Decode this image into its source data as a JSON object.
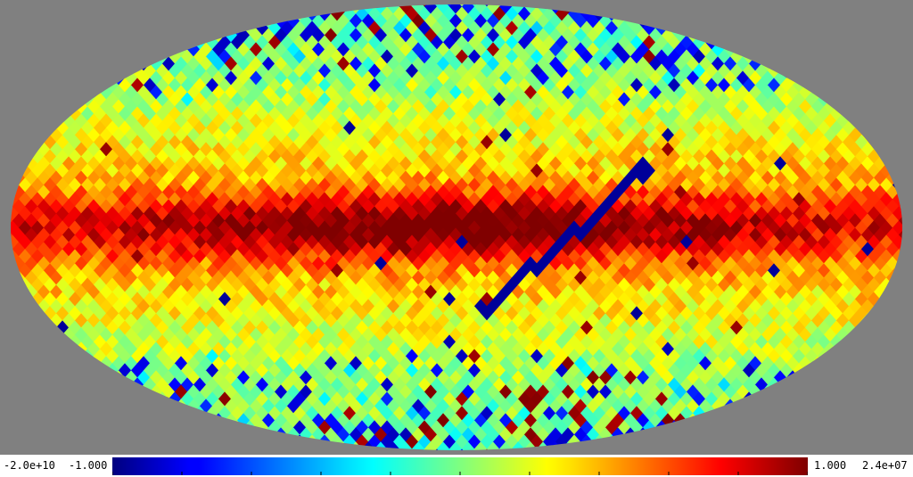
{
  "chart_data": {
    "type": "heatmap",
    "projection": "mollweide",
    "title": "",
    "colormap": "jet",
    "colorbar": {
      "abs_min_label": "-2.0e+10",
      "min_label": "-1.000",
      "max_label": "1.000",
      "abs_max_label": "2.4e+07",
      "range": [
        -1.0,
        1.0
      ],
      "ticks": [
        -1.0,
        -0.8,
        -0.6,
        -0.4,
        -0.2,
        0.0,
        0.2,
        0.4,
        0.6,
        0.8,
        1.0
      ]
    },
    "background_color": "#808080",
    "features": [
      {
        "name": "galactic-plane-band",
        "lon_range": [
          -180,
          180
        ],
        "lat": 0,
        "value": 0.7
      },
      {
        "name": "diagonal-stripe",
        "from_lonlat": [
          -80,
          25
        ],
        "to_lonlat": [
          -10,
          -35
        ],
        "value": -0.95
      }
    ],
    "outlier_pixels_near_poles": true
  }
}
